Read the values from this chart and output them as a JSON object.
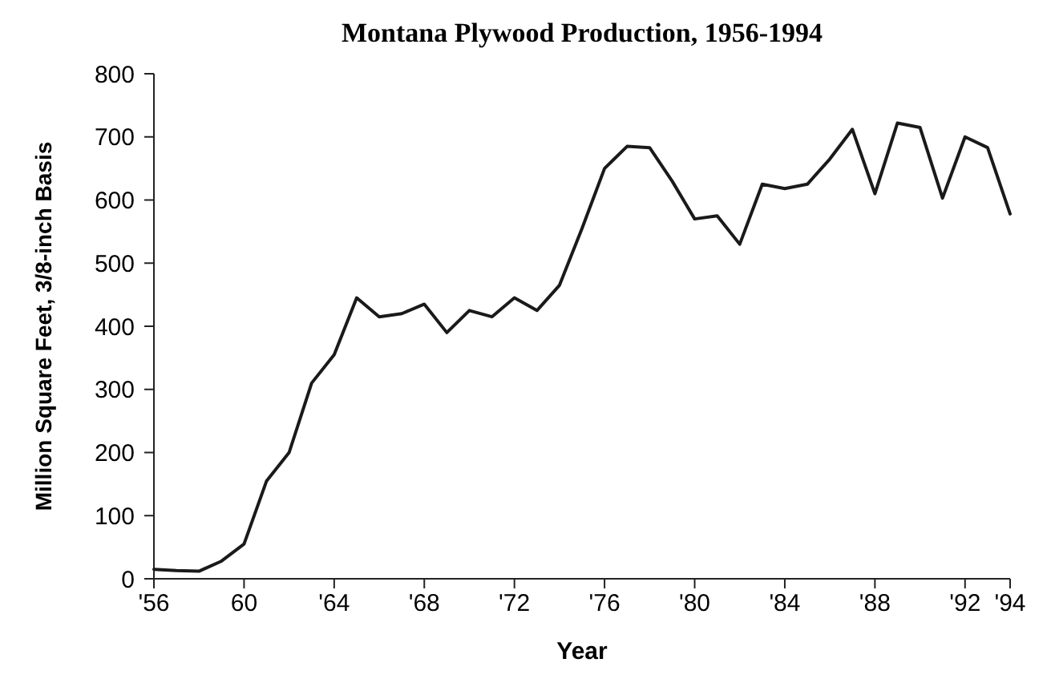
{
  "chart_data": {
    "type": "line",
    "title": "Montana Plywood Production, 1956-1994",
    "xlabel": "Year",
    "ylabel": "Million Square Feet, 3/8-inch Basis",
    "x": [
      1956,
      1957,
      1958,
      1959,
      1960,
      1961,
      1962,
      1963,
      1964,
      1965,
      1966,
      1967,
      1968,
      1969,
      1970,
      1971,
      1972,
      1973,
      1974,
      1975,
      1976,
      1977,
      1978,
      1979,
      1980,
      1981,
      1982,
      1983,
      1984,
      1985,
      1986,
      1987,
      1988,
      1989,
      1990,
      1991,
      1992,
      1993,
      1994
    ],
    "series": [
      {
        "color": "#1a1a1a",
        "values": [
          15,
          13,
          12,
          28,
          55,
          155,
          200,
          310,
          355,
          445,
          415,
          420,
          435,
          390,
          425,
          415,
          445,
          425,
          465,
          555,
          650,
          685,
          683,
          630,
          570,
          575,
          530,
          625,
          618,
          625,
          665,
          712,
          610,
          722,
          715,
          603,
          700,
          683,
          578
        ]
      }
    ],
    "xlim": [
      1956,
      1994
    ],
    "xticks": [
      {
        "value": 1956,
        "label": "'56"
      },
      {
        "value": 1960,
        "label": "60"
      },
      {
        "value": 1964,
        "label": "'64"
      },
      {
        "value": 1968,
        "label": "'68"
      },
      {
        "value": 1972,
        "label": "'72"
      },
      {
        "value": 1976,
        "label": "'76"
      },
      {
        "value": 1980,
        "label": "'80"
      },
      {
        "value": 1984,
        "label": "'84"
      },
      {
        "value": 1988,
        "label": "'88"
      },
      {
        "value": 1992,
        "label": "'92"
      },
      {
        "value": 1994,
        "label": "'94"
      }
    ],
    "ylim": [
      0,
      800
    ],
    "yticks": [
      0,
      100,
      200,
      300,
      400,
      500,
      600,
      700,
      800
    ],
    "grid": false,
    "marker": "none",
    "line_style": "solid"
  }
}
